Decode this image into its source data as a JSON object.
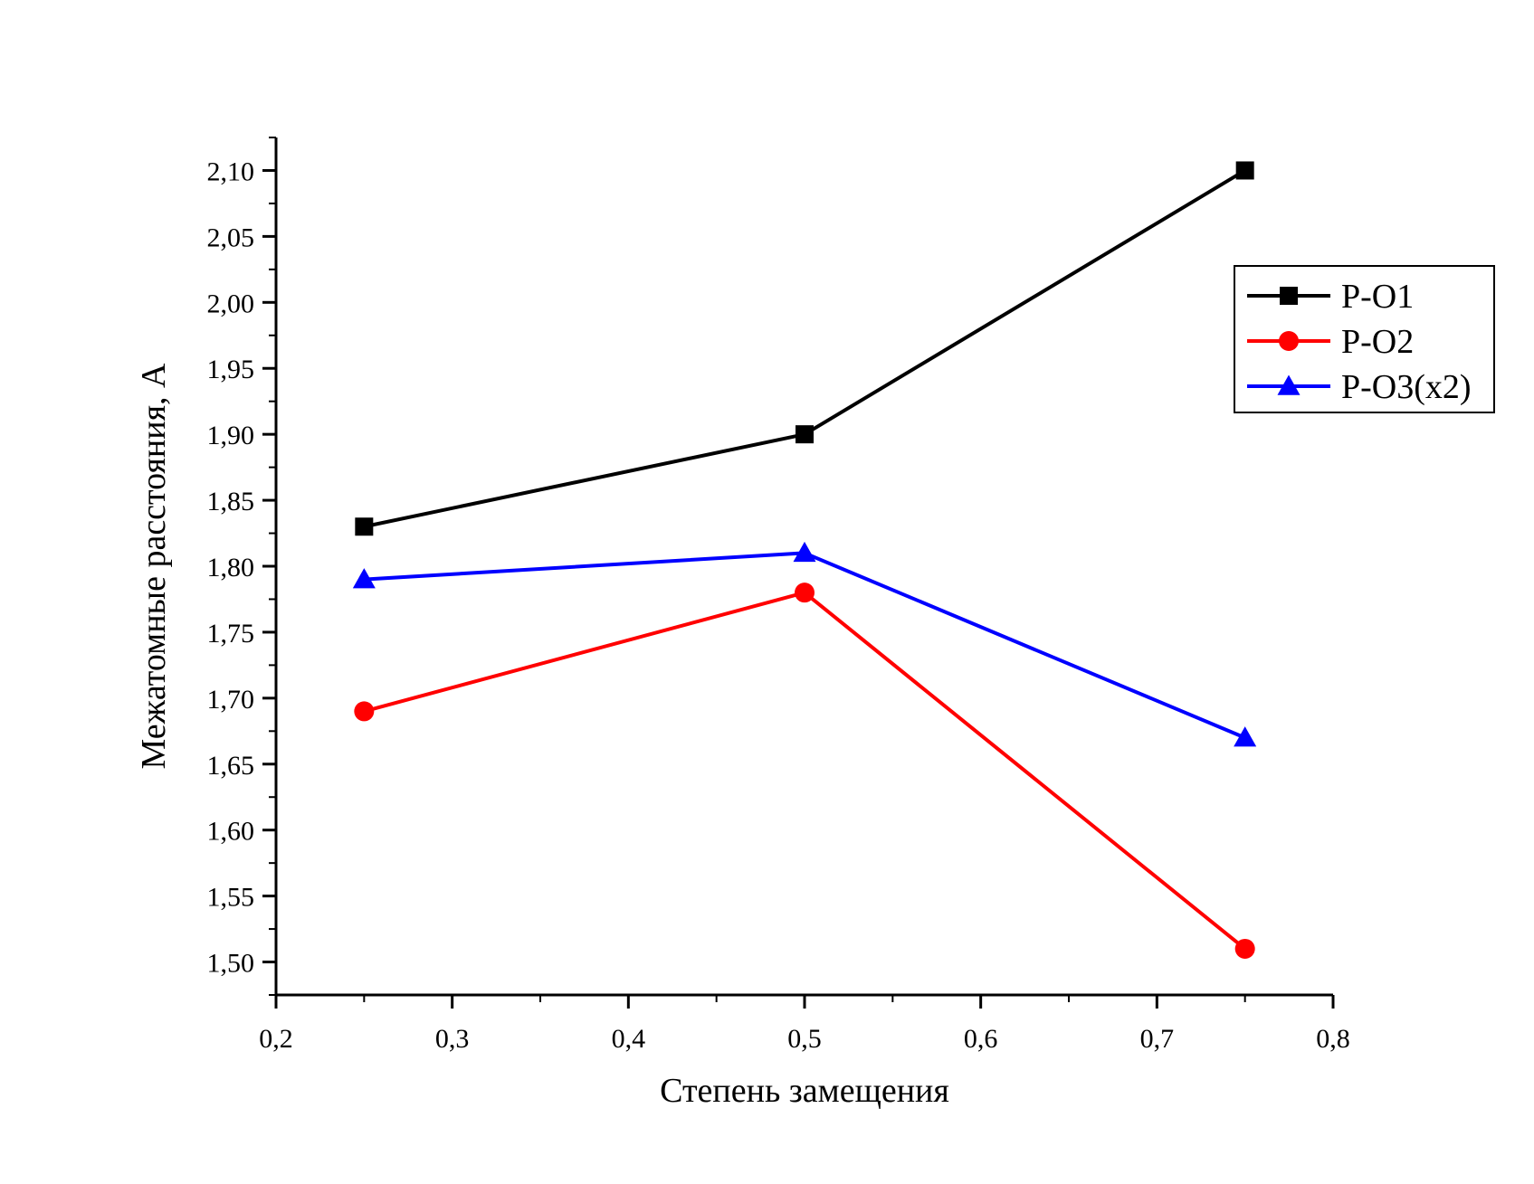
{
  "chart_data": {
    "type": "line",
    "title": "",
    "xlabel": "Степень замещения",
    "ylabel": "Межатомные расстояния, А",
    "xlim": [
      0.2,
      0.8
    ],
    "ylim": [
      1.475,
      2.125
    ],
    "x_ticks": [
      0.2,
      0.3,
      0.4,
      0.5,
      0.6,
      0.7,
      0.8
    ],
    "x_tick_labels": [
      "0,2",
      "0,3",
      "0,4",
      "0,5",
      "0,6",
      "0,7",
      "0,8"
    ],
    "y_ticks": [
      1.5,
      1.55,
      1.6,
      1.65,
      1.7,
      1.75,
      1.8,
      1.85,
      1.9,
      1.95,
      2.0,
      2.05,
      2.1
    ],
    "y_tick_labels": [
      "1,50",
      "1,55",
      "1,60",
      "1,65",
      "1,70",
      "1,75",
      "1,80",
      "1,85",
      "1,90",
      "1,95",
      "2,00",
      "2,05",
      "2,10"
    ],
    "grid": false,
    "legend_position": "top-right",
    "x": [
      0.25,
      0.5,
      0.75
    ],
    "series": [
      {
        "name": "P-O1",
        "color": "#000000",
        "marker": "square",
        "values": [
          1.83,
          1.9,
          2.1
        ]
      },
      {
        "name": "P-O2",
        "color": "#ff0000",
        "marker": "circle",
        "values": [
          1.69,
          1.78,
          1.51
        ]
      },
      {
        "name": "P-O3(x2)",
        "color": "#0000ff",
        "marker": "triangle",
        "values": [
          1.79,
          1.81,
          1.67
        ]
      }
    ]
  }
}
